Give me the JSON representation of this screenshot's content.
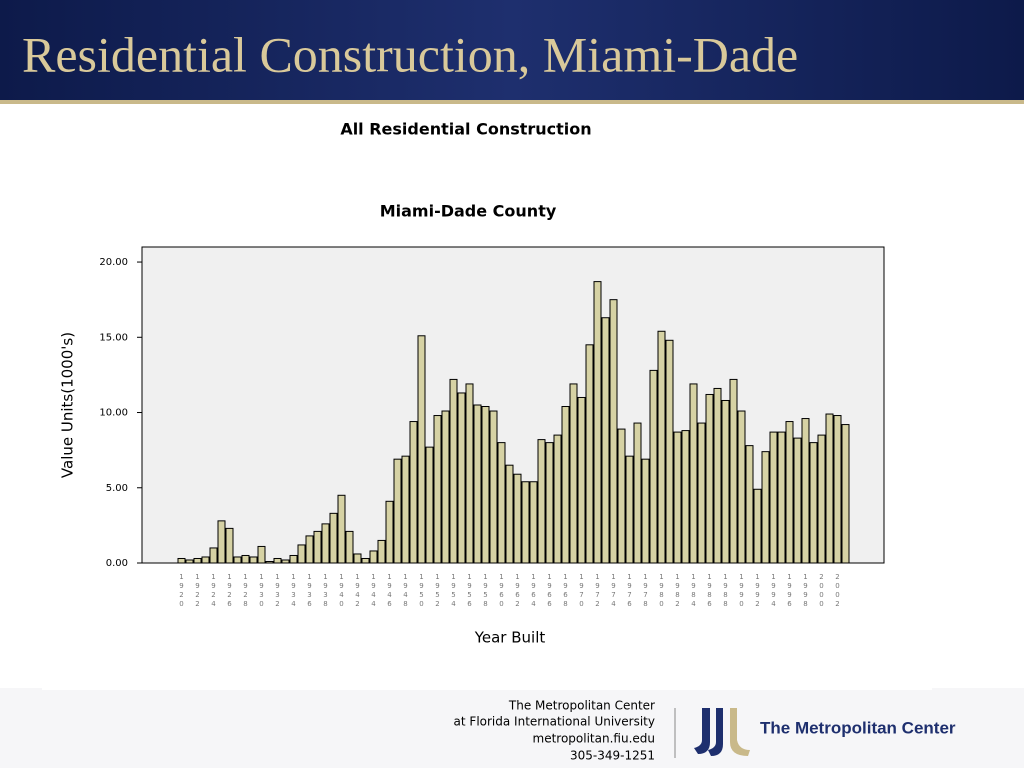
{
  "header": {
    "title": "Residential Construction, Miami-Dade"
  },
  "chart_data": {
    "type": "bar",
    "title": "All Residential Construction",
    "subtitle": "Miami-Dade County",
    "y_label": "Value Units(1000's)",
    "x_label": "Year Built",
    "color": "#d6d2a4",
    "categories": [
      "1920",
      null,
      "1922",
      null,
      "1924",
      null,
      "1926",
      null,
      "1928",
      null,
      "1930",
      null,
      "1932",
      null,
      "1934",
      null,
      "1936",
      null,
      "1938",
      null,
      "1940",
      null,
      "1942",
      null,
      "1944",
      null,
      "1946",
      null,
      "1948",
      null,
      "1950",
      null,
      "1952",
      null,
      "1954",
      null,
      "1956",
      null,
      "1958",
      null,
      "1960",
      null,
      "1962",
      null,
      "1964",
      null,
      "1966",
      null,
      "1968",
      null,
      "1970",
      null,
      "1972",
      null,
      "1974",
      null,
      "1976",
      null,
      "1978",
      null,
      "1980",
      null,
      "1982",
      null,
      "1984",
      null,
      "1986",
      null,
      "1988",
      null,
      "1990",
      null,
      "1992",
      null,
      "1994",
      null,
      "1996",
      null,
      "1998",
      null,
      "2000",
      null,
      "2002",
      null
    ],
    "values": [
      0.3,
      0.2,
      0.3,
      0.4,
      1.0,
      2.8,
      2.3,
      0.4,
      0.5,
      0.4,
      1.1,
      0.1,
      0.3,
      0.2,
      0.5,
      1.2,
      1.8,
      2.1,
      2.6,
      3.3,
      4.5,
      2.1,
      0.6,
      0.3,
      0.8,
      1.5,
      4.1,
      6.9,
      7.1,
      9.4,
      15.1,
      7.7,
      9.8,
      10.1,
      12.2,
      11.3,
      11.9,
      10.5,
      10.4,
      10.1,
      8.0,
      6.5,
      5.9,
      5.4,
      5.4,
      8.2,
      8.0,
      8.5,
      10.4,
      11.9,
      11.0,
      14.5,
      18.7,
      16.3,
      17.5,
      8.9,
      7.1,
      9.3,
      6.9,
      12.8,
      15.4,
      14.8,
      8.7,
      8.8,
      11.9,
      9.3,
      11.2,
      11.6,
      10.8,
      12.2,
      10.1,
      7.8,
      4.9,
      7.4,
      8.7,
      8.7,
      9.4,
      8.3,
      9.6,
      8.0,
      8.5,
      9.9,
      9.8,
      9.2
    ],
    "ylim": [
      0,
      21
    ],
    "yticks": [
      {
        "value": 0,
        "label": "0.00"
      },
      {
        "value": 5,
        "label": "5.00"
      },
      {
        "value": 10,
        "label": "10.00"
      },
      {
        "value": 15,
        "label": "15.00"
      },
      {
        "value": 20,
        "label": "20.00"
      }
    ]
  },
  "footer": {
    "lines": [
      "The Metropolitan Center",
      "at Florida International University",
      "metropolitan.fiu.edu",
      "305-349-1251"
    ],
    "logo_text": "The Metropolitan Center"
  }
}
